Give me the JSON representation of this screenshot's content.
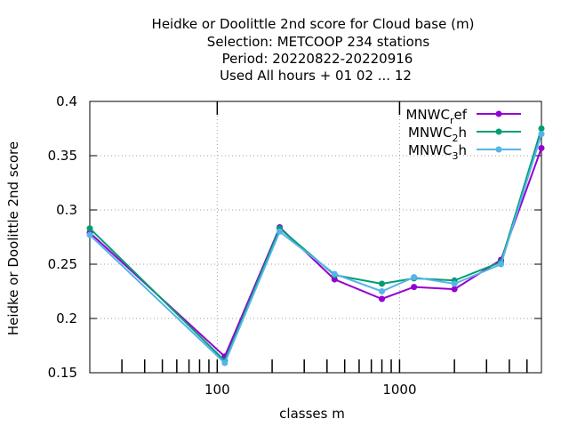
{
  "chart_data": {
    "type": "line",
    "title_lines": [
      "Heidke or Doolittle 2nd score  for Cloud base (m)",
      "Selection: METCOOP    234 stations",
      "Period: 20220822-20220916",
      "Used  All hours + 01 02 ... 12"
    ],
    "xlabel": "classes m",
    "ylabel": "Heidke or Doolittle 2nd score",
    "x_scale": "log",
    "xlim": [
      20,
      6000
    ],
    "ylim": [
      0.15,
      0.4
    ],
    "x_ticks": [
      100,
      1000
    ],
    "x_tick_labels": [
      "100",
      "1000"
    ],
    "x_minor_ticks": [
      30,
      40,
      50,
      60,
      70,
      80,
      90,
      200,
      300,
      400,
      500,
      600,
      700,
      800,
      900,
      2000,
      3000,
      4000,
      5000,
      6000
    ],
    "y_ticks": [
      0.15,
      0.2,
      0.25,
      0.3,
      0.35,
      0.4
    ],
    "y_tick_labels": [
      "0.15",
      "0.2",
      "0.25",
      "0.3",
      "0.35",
      "0.4"
    ],
    "grid": true,
    "legend_position": "top-right",
    "x": [
      20,
      110,
      220,
      440,
      800,
      1200,
      2000,
      3600,
      6000
    ],
    "series": [
      {
        "name": "MNWC",
        "name_sub": "r",
        "name_suffix": "ef",
        "color": "#9400d3",
        "values": [
          0.279,
          0.165,
          0.284,
          0.236,
          0.218,
          0.229,
          0.227,
          0.254,
          0.357
        ]
      },
      {
        "name": "MNWC",
        "name_sub": "2",
        "name_suffix": "h",
        "color": "#009e73",
        "values": [
          0.283,
          0.161,
          0.283,
          0.24,
          0.232,
          0.237,
          0.235,
          0.252,
          0.375
        ]
      },
      {
        "name": "MNWC",
        "name_sub": "3",
        "name_suffix": "h",
        "color": "#56b4e9",
        "values": [
          0.277,
          0.159,
          0.28,
          0.241,
          0.225,
          0.238,
          0.232,
          0.25,
          0.37
        ]
      }
    ]
  }
}
